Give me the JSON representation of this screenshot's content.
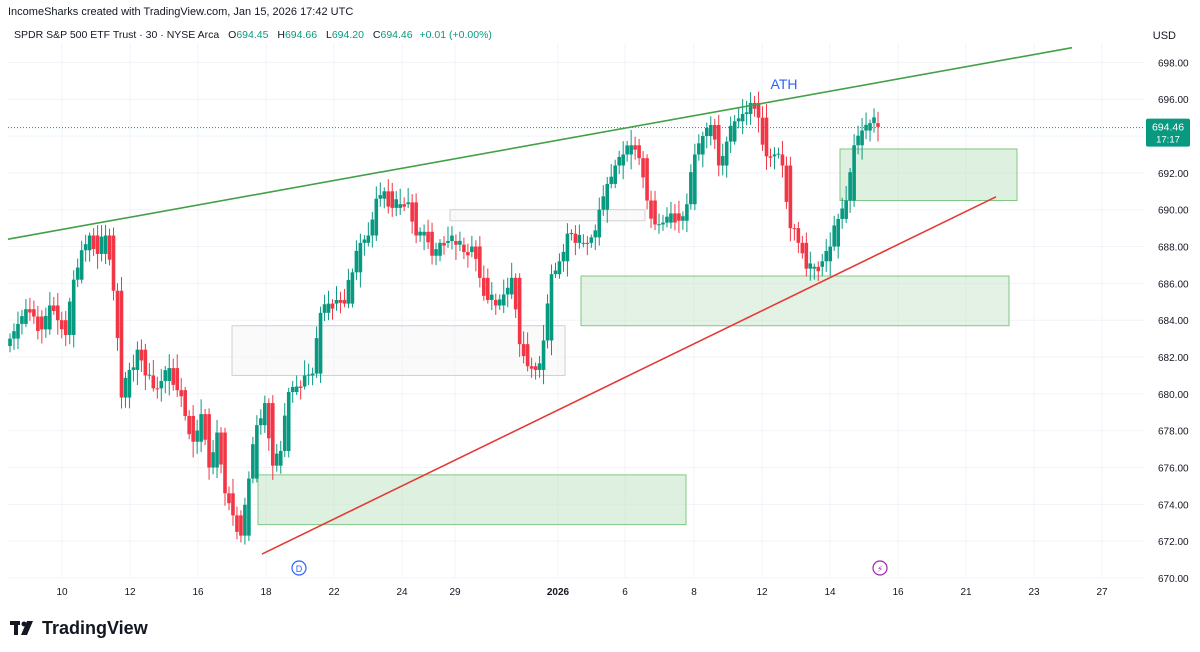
{
  "header": {
    "credit": "IncomeSharks created with TradingView.com, Jan 15, 2026 17:42 UTC",
    "symbol": "SPDR S&P 500 ETF Trust · 30 · NYSE Arca",
    "o_label": "O",
    "o_value": "694.45",
    "h_label": "H",
    "h_value": "694.66",
    "l_label": "L",
    "l_value": "694.20",
    "c_label": "C",
    "c_value": "694.46",
    "change": "+0.01 (+0.00%)"
  },
  "currency": "USD",
  "brand": {
    "name": "TradingView",
    "logo": "tradingview-logo-icon"
  },
  "colors": {
    "up": "#089981",
    "down": "#f23645",
    "trend_up": "#43a047",
    "trend_support": "#e53935",
    "zone": "#c8e6c9",
    "ath": "#2962ff"
  },
  "chart_data": {
    "type": "candlestick",
    "title": "SPDR S&P 500 ETF Trust · 30 · NYSE Arca",
    "ylim": [
      670,
      699
    ],
    "y_ticks": [
      "670.00",
      "672.00",
      "674.00",
      "676.00",
      "678.00",
      "680.00",
      "682.00",
      "684.00",
      "686.00",
      "688.00",
      "690.00",
      "692.00",
      "694.00",
      "696.00",
      "698.00"
    ],
    "x_tick_labels": [
      "10",
      "12",
      "16",
      "18",
      "22",
      "24",
      "29",
      "2026",
      "6",
      "8",
      "12",
      "14",
      "16",
      "21",
      "23",
      "27"
    ],
    "price_label": {
      "value": "694.46",
      "countdown": "17:17"
    },
    "annotations": [
      {
        "text": "ATH",
        "x": "12",
        "y": 696.0
      }
    ],
    "events": [
      {
        "label": "D",
        "x": "18"
      },
      {
        "label": "⚡",
        "x": "16"
      }
    ],
    "trendlines": [
      {
        "name": "rising-resistance",
        "from": [
          "start",
          688.4
        ],
        "to": [
          "25",
          698.8
        ]
      },
      {
        "name": "rising-support",
        "from": [
          "18",
          671.3
        ],
        "to": [
          "21",
          690.7
        ]
      }
    ],
    "zones": [
      {
        "name": "demand-zone-low",
        "from": "18",
        "to": "8",
        "ylim": [
          672.9,
          675.6
        ]
      },
      {
        "name": "gap-zone-a",
        "from": "16",
        "to": "2026",
        "ylim": [
          681.0,
          683.7
        ]
      },
      {
        "name": "gap-zone-b",
        "from": "29",
        "to": "6",
        "ylim": [
          689.4,
          690.0
        ]
      },
      {
        "name": "demand-zone-mid",
        "from": "2026",
        "to": "16",
        "ylim": [
          683.7,
          686.4
        ]
      },
      {
        "name": "demand-zone-high",
        "from": "14",
        "to": "16",
        "ylim": [
          690.5,
          693.3
        ]
      }
    ],
    "close_path": [
      [
        0,
        683.0
      ],
      [
        2,
        683.8
      ],
      [
        4,
        684.6
      ],
      [
        6,
        684.2
      ],
      [
        8,
        683.5
      ],
      [
        10,
        684.8
      ],
      [
        12,
        684.0
      ],
      [
        14,
        683.2
      ],
      [
        16,
        686.2
      ],
      [
        18,
        687.8
      ],
      [
        20,
        688.6
      ],
      [
        22,
        687.6
      ],
      [
        24,
        688.6
      ],
      [
        26,
        685.6
      ],
      [
        28,
        679.8
      ],
      [
        30,
        681.3
      ],
      [
        32,
        682.4
      ],
      [
        34,
        681.0
      ],
      [
        36,
        680.3
      ],
      [
        38,
        680.7
      ],
      [
        40,
        681.4
      ],
      [
        42,
        680.2
      ],
      [
        44,
        678.8
      ],
      [
        46,
        677.4
      ],
      [
        48,
        678.9
      ],
      [
        50,
        676.0
      ],
      [
        52,
        677.9
      ],
      [
        54,
        674.6
      ],
      [
        56,
        673.4
      ],
      [
        58,
        672.3
      ],
      [
        60,
        675.4
      ],
      [
        62,
        678.3
      ],
      [
        64,
        679.5
      ],
      [
        66,
        676.1
      ],
      [
        68,
        676.9
      ],
      [
        70,
        680.1
      ],
      [
        72,
        680.4
      ],
      [
        74,
        681.0
      ],
      [
        76,
        681.1
      ],
      [
        78,
        684.4
      ],
      [
        80,
        684.9
      ],
      [
        82,
        685.1
      ],
      [
        84,
        684.9
      ],
      [
        86,
        686.6
      ],
      [
        88,
        688.2
      ],
      [
        90,
        688.6
      ],
      [
        92,
        690.6
      ],
      [
        94,
        691.0
      ],
      [
        96,
        690.1
      ],
      [
        98,
        690.3
      ],
      [
        100,
        690.4
      ],
      [
        102,
        688.6
      ],
      [
        104,
        688.8
      ],
      [
        106,
        687.5
      ],
      [
        108,
        688.2
      ],
      [
        110,
        688.3
      ],
      [
        112,
        688.1
      ],
      [
        114,
        687.7
      ],
      [
        116,
        688.0
      ],
      [
        118,
        686.3
      ],
      [
        120,
        685.1
      ],
      [
        122,
        684.8
      ],
      [
        124,
        685.4
      ],
      [
        126,
        686.3
      ],
      [
        128,
        682.7
      ],
      [
        130,
        681.5
      ],
      [
        132,
        681.3
      ],
      [
        134,
        682.9
      ],
      [
        136,
        686.5
      ],
      [
        138,
        687.2
      ],
      [
        140,
        688.7
      ],
      [
        142,
        688.2
      ],
      [
        144,
        688.2
      ],
      [
        146,
        688.5
      ],
      [
        148,
        690.0
      ],
      [
        150,
        691.4
      ],
      [
        152,
        692.4
      ],
      [
        154,
        693.0
      ],
      [
        156,
        693.5
      ],
      [
        158,
        692.8
      ],
      [
        160,
        690.5
      ],
      [
        162,
        689.2
      ],
      [
        164,
        689.3
      ],
      [
        166,
        689.8
      ],
      [
        168,
        689.4
      ],
      [
        170,
        690.3
      ],
      [
        172,
        693.0
      ],
      [
        174,
        694.0
      ],
      [
        176,
        694.6
      ],
      [
        178,
        692.4
      ],
      [
        180,
        693.7
      ],
      [
        182,
        694.8
      ],
      [
        184,
        695.2
      ],
      [
        186,
        695.8
      ],
      [
        188,
        695.0
      ],
      [
        190,
        692.9
      ],
      [
        192,
        693.0
      ],
      [
        194,
        692.4
      ],
      [
        196,
        689.0
      ],
      [
        198,
        688.2
      ],
      [
        200,
        686.8
      ],
      [
        202,
        686.9
      ],
      [
        204,
        687.2
      ],
      [
        206,
        688.0
      ],
      [
        208,
        689.5
      ],
      [
        210,
        690.5
      ],
      [
        212,
        693.5
      ],
      [
        214,
        694.3
      ],
      [
        216,
        694.7
      ],
      [
        218,
        694.5
      ]
    ]
  }
}
